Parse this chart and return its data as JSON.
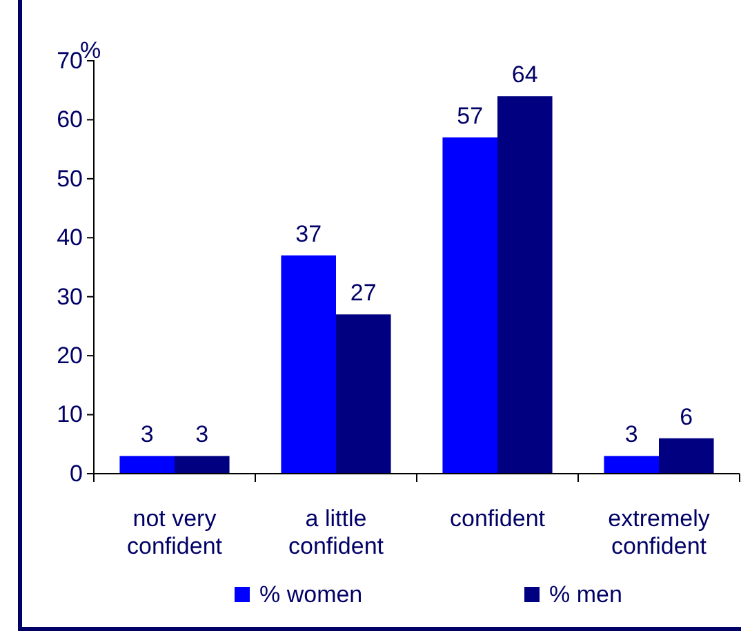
{
  "chart_data": {
    "type": "bar",
    "ylabel": "%",
    "categories": [
      "not very confident",
      "a little confident",
      "confident",
      "extremely confident"
    ],
    "series": [
      {
        "name": "% women",
        "color": "#0000ff",
        "values": [
          3,
          37,
          57,
          3
        ]
      },
      {
        "name": "% men",
        "color": "#000080",
        "values": [
          3,
          27,
          64,
          6
        ]
      }
    ],
    "ylim": [
      0,
      70
    ],
    "yticks": [
      0,
      10,
      20,
      30,
      40,
      50,
      60,
      70
    ],
    "data_labels": true,
    "legend": "bottom",
    "grid": false
  }
}
